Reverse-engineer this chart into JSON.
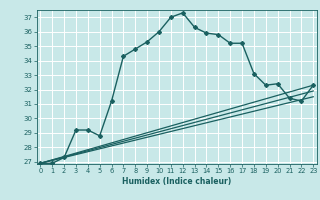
{
  "xlabel": "Humidex (Indice chaleur)",
  "ylabel": "",
  "xlim": [
    -0.3,
    23.3
  ],
  "ylim": [
    26.85,
    37.5
  ],
  "yticks": [
    27,
    28,
    29,
    30,
    31,
    32,
    33,
    34,
    35,
    36,
    37
  ],
  "xticks": [
    0,
    1,
    2,
    3,
    4,
    5,
    6,
    7,
    8,
    9,
    10,
    11,
    12,
    13,
    14,
    15,
    16,
    17,
    18,
    19,
    20,
    21,
    22,
    23
  ],
  "bg_color": "#c8e8e8",
  "grid_color": "#ffffff",
  "line_color": "#1a6060",
  "series": [
    {
      "x": [
        0,
        1,
        2,
        3,
        4,
        5,
        6,
        7,
        8,
        9,
        10,
        11,
        12,
        13,
        14,
        15,
        16,
        17,
        18,
        19,
        20,
        21,
        22,
        23
      ],
      "y": [
        26.9,
        26.9,
        27.3,
        29.2,
        29.2,
        28.8,
        31.2,
        34.3,
        34.8,
        35.3,
        36.0,
        37.0,
        37.3,
        36.3,
        35.9,
        35.8,
        35.2,
        35.2,
        33.1,
        32.3,
        32.4,
        31.4,
        31.2,
        32.3
      ],
      "marker": "D",
      "markersize": 2.0,
      "linewidth": 1.0
    },
    {
      "x": [
        0,
        23
      ],
      "y": [
        26.9,
        31.5
      ],
      "marker": null,
      "markersize": 0,
      "linewidth": 0.9
    },
    {
      "x": [
        0,
        23
      ],
      "y": [
        26.9,
        31.9
      ],
      "marker": null,
      "markersize": 0,
      "linewidth": 0.9
    },
    {
      "x": [
        0,
        23
      ],
      "y": [
        26.9,
        32.3
      ],
      "marker": null,
      "markersize": 0,
      "linewidth": 0.9
    }
  ]
}
